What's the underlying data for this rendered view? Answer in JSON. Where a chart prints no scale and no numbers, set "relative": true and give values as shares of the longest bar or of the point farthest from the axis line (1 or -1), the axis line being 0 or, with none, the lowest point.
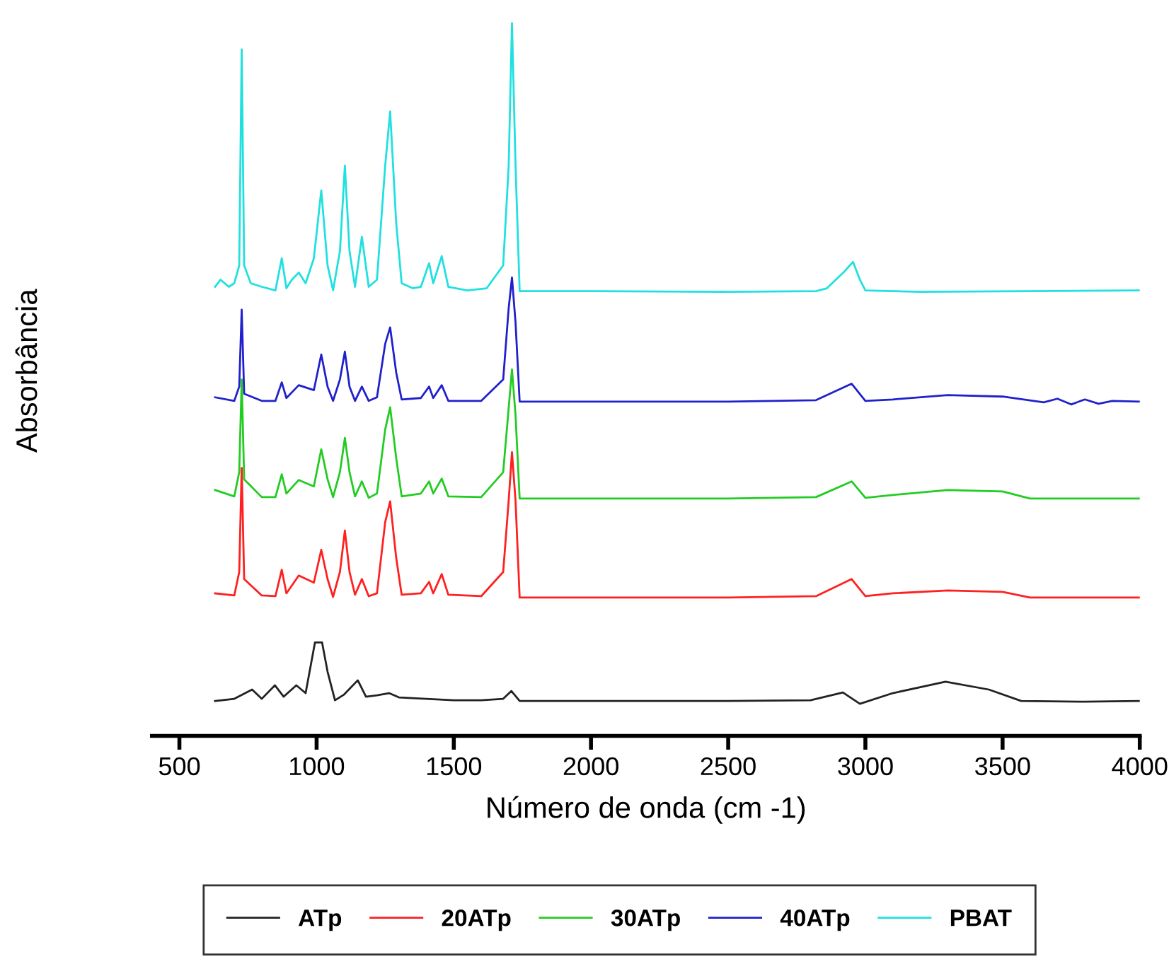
{
  "chart_data": {
    "type": "line",
    "relative": true,
    "xlabel": "Número de onda (cm -1)",
    "ylabel": "Absorbância",
    "xlim": [
      400,
      4000
    ],
    "xticks": [
      500,
      1000,
      1500,
      2000,
      2500,
      3000,
      3500,
      4000
    ],
    "legend": "bottom",
    "grid": false,
    "marker": "none",
    "line_style": "solid",
    "series": [
      {
        "name": "ATp",
        "color": "#222222",
        "x": [
          630,
          700,
          765,
          800,
          848,
          880,
          926,
          960,
          994,
          1020,
          1040,
          1067,
          1100,
          1150,
          1180,
          1220,
          1264,
          1300,
          1400,
          1500,
          1600,
          1680,
          1710,
          1740,
          2000,
          2500,
          2800,
          2918,
          2980,
          3100,
          3292,
          3450,
          3568,
          3800,
          4000
        ],
        "values": [
          0.049,
          0.052,
          0.065,
          0.052,
          0.071,
          0.055,
          0.071,
          0.06,
          0.131,
          0.131,
          0.09,
          0.05,
          0.058,
          0.078,
          0.055,
          0.057,
          0.06,
          0.054,
          0.052,
          0.05,
          0.05,
          0.052,
          0.063,
          0.049,
          0.049,
          0.049,
          0.05,
          0.061,
          0.045,
          0.06,
          0.076,
          0.065,
          0.049,
          0.048,
          0.049
        ]
      },
      {
        "name": "20ATp",
        "color": "#ff2020",
        "x": [
          630,
          700,
          718,
          727,
          736,
          800,
          850,
          873,
          890,
          935,
          990,
          1017,
          1040,
          1060,
          1085,
          1103,
          1120,
          1140,
          1165,
          1190,
          1220,
          1250,
          1268,
          1290,
          1310,
          1380,
          1410,
          1425,
          1456,
          1480,
          1600,
          1680,
          1700,
          1712,
          1725,
          1740,
          2000,
          2500,
          2820,
          2950,
          3000,
          3100,
          3300,
          3500,
          3600,
          4000
        ],
        "values": [
          0.2,
          0.197,
          0.23,
          0.376,
          0.22,
          0.197,
          0.196,
          0.233,
          0.2,
          0.225,
          0.215,
          0.261,
          0.22,
          0.195,
          0.23,
          0.288,
          0.23,
          0.198,
          0.22,
          0.196,
          0.2,
          0.3,
          0.329,
          0.25,
          0.198,
          0.2,
          0.216,
          0.2,
          0.227,
          0.198,
          0.196,
          0.23,
          0.33,
          0.398,
          0.33,
          0.194,
          0.194,
          0.194,
          0.196,
          0.22,
          0.196,
          0.2,
          0.204,
          0.202,
          0.194,
          0.194
        ]
      },
      {
        "name": "30ATp",
        "color": "#22cc22",
        "x": [
          630,
          700,
          718,
          727,
          736,
          800,
          850,
          873,
          890,
          935,
          990,
          1017,
          1040,
          1060,
          1085,
          1103,
          1120,
          1140,
          1165,
          1190,
          1220,
          1250,
          1268,
          1290,
          1310,
          1380,
          1410,
          1425,
          1456,
          1480,
          1600,
          1680,
          1700,
          1712,
          1725,
          1740,
          2000,
          2500,
          2820,
          2950,
          3000,
          3100,
          3300,
          3500,
          3600,
          4000
        ],
        "values": [
          0.345,
          0.336,
          0.37,
          0.5,
          0.36,
          0.335,
          0.335,
          0.367,
          0.34,
          0.359,
          0.35,
          0.402,
          0.36,
          0.335,
          0.37,
          0.418,
          0.37,
          0.336,
          0.357,
          0.334,
          0.34,
          0.43,
          0.461,
          0.39,
          0.336,
          0.34,
          0.357,
          0.34,
          0.361,
          0.336,
          0.335,
          0.37,
          0.46,
          0.514,
          0.45,
          0.333,
          0.333,
          0.333,
          0.335,
          0.357,
          0.334,
          0.338,
          0.345,
          0.343,
          0.333,
          0.333
        ]
      },
      {
        "name": "40ATp",
        "color": "#2020cc",
        "x": [
          630,
          700,
          718,
          727,
          736,
          800,
          850,
          873,
          890,
          935,
          990,
          1017,
          1040,
          1060,
          1085,
          1103,
          1120,
          1140,
          1165,
          1190,
          1220,
          1250,
          1268,
          1290,
          1310,
          1380,
          1410,
          1425,
          1456,
          1480,
          1600,
          1680,
          1700,
          1712,
          1725,
          1740,
          2000,
          2500,
          2820,
          2950,
          3000,
          3100,
          3300,
          3500,
          3650,
          3700,
          3750,
          3800,
          3850,
          3900,
          4000
        ],
        "values": [
          0.475,
          0.47,
          0.49,
          0.598,
          0.48,
          0.47,
          0.47,
          0.496,
          0.474,
          0.492,
          0.485,
          0.535,
          0.49,
          0.47,
          0.5,
          0.539,
          0.49,
          0.47,
          0.49,
          0.47,
          0.475,
          0.55,
          0.573,
          0.51,
          0.472,
          0.474,
          0.49,
          0.474,
          0.492,
          0.47,
          0.47,
          0.5,
          0.6,
          0.643,
          0.58,
          0.469,
          0.469,
          0.469,
          0.471,
          0.494,
          0.47,
          0.472,
          0.478,
          0.476,
          0.468,
          0.473,
          0.465,
          0.472,
          0.466,
          0.47,
          0.469
        ]
      },
      {
        "name": "PBAT",
        "color": "#20e0e0",
        "x": [
          630,
          650,
          680,
          700,
          718,
          727,
          736,
          760,
          800,
          850,
          873,
          890,
          910,
          935,
          960,
          990,
          1017,
          1040,
          1060,
          1085,
          1103,
          1120,
          1140,
          1165,
          1190,
          1220,
          1250,
          1268,
          1290,
          1310,
          1350,
          1380,
          1410,
          1425,
          1456,
          1480,
          1550,
          1620,
          1680,
          1700,
          1712,
          1725,
          1740,
          2000,
          2500,
          2820,
          2860,
          2920,
          2955,
          2980,
          3000,
          3200,
          3600,
          4000
        ],
        "values": [
          0.63,
          0.64,
          0.63,
          0.635,
          0.66,
          0.963,
          0.66,
          0.635,
          0.63,
          0.625,
          0.67,
          0.628,
          0.64,
          0.65,
          0.635,
          0.67,
          0.765,
          0.66,
          0.625,
          0.68,
          0.8,
          0.68,
          0.63,
          0.7,
          0.63,
          0.64,
          0.8,
          0.876,
          0.72,
          0.635,
          0.628,
          0.63,
          0.663,
          0.635,
          0.673,
          0.63,
          0.625,
          0.628,
          0.66,
          0.8,
          1.0,
          0.8,
          0.624,
          0.624,
          0.623,
          0.624,
          0.628,
          0.65,
          0.665,
          0.64,
          0.625,
          0.623,
          0.624,
          0.625
        ]
      }
    ]
  }
}
